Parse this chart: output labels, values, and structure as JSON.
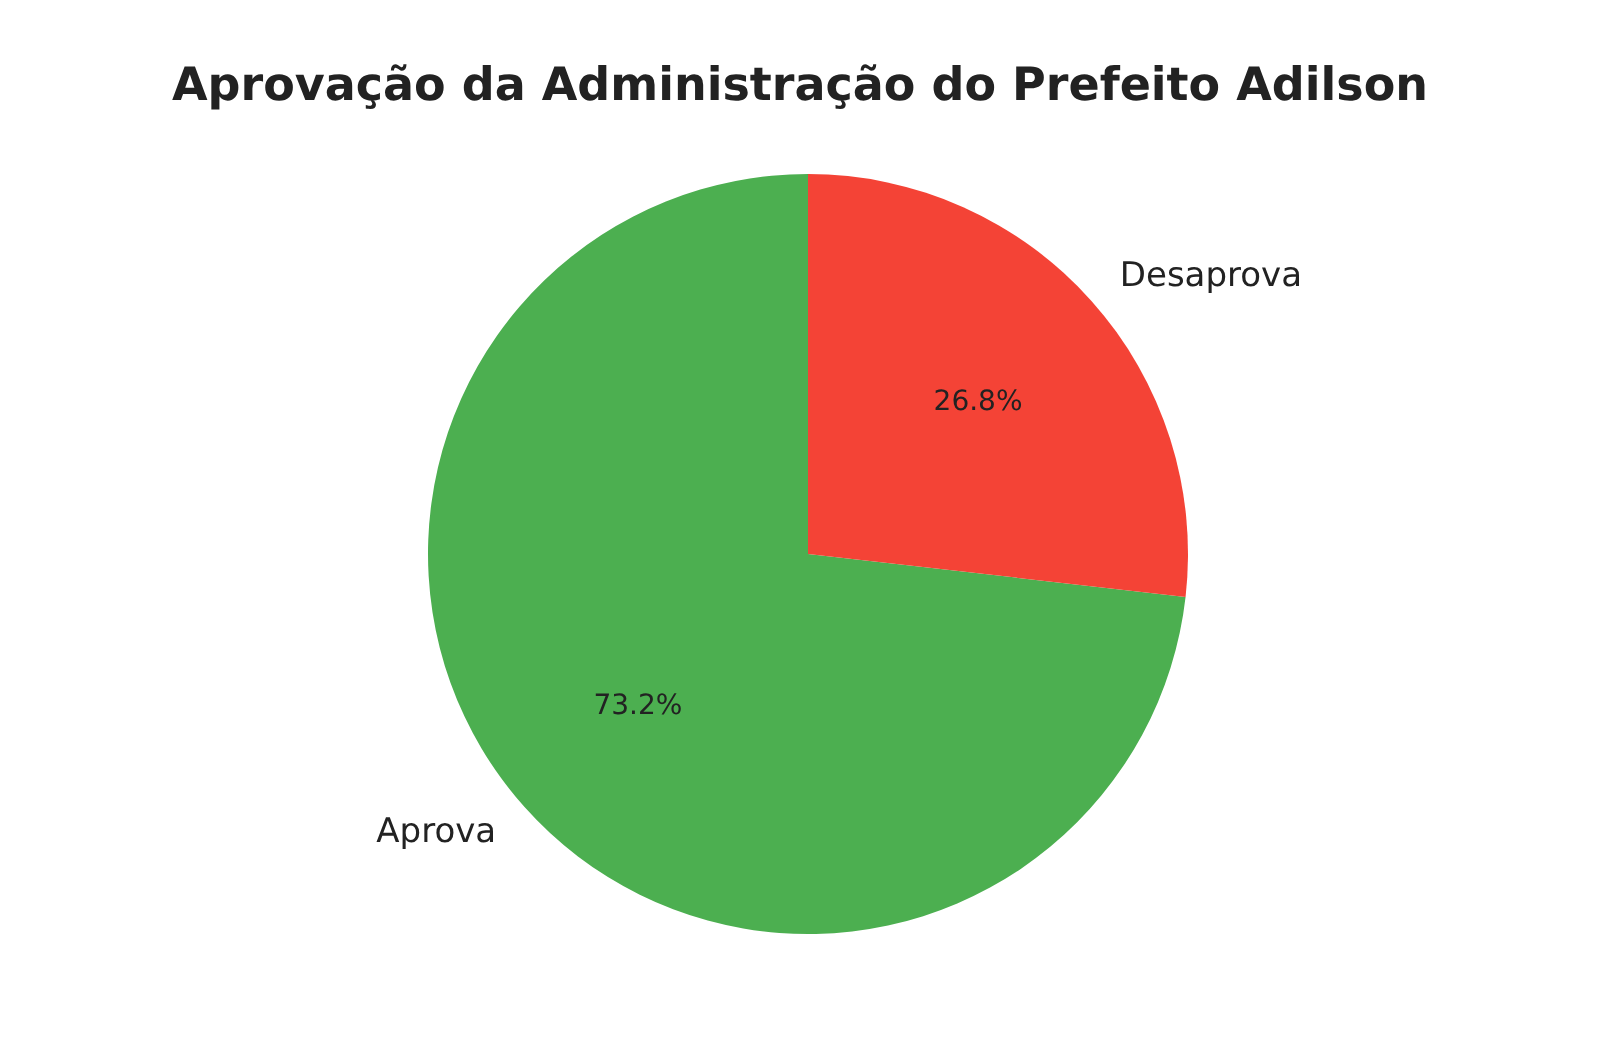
{
  "chart_data": {
    "type": "pie",
    "title": "Aprovação da Administração do Prefeito Adilson",
    "categories": [
      "Aprova",
      "Desaprova"
    ],
    "values": [
      73.2,
      26.8
    ],
    "colors": [
      "#4caf50",
      "#f44336"
    ],
    "value_labels": [
      "73.2%",
      "26.8%"
    ],
    "legend": false
  }
}
